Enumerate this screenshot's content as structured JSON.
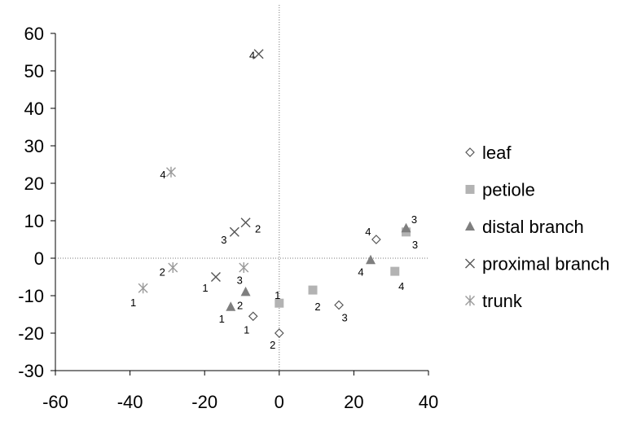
{
  "chart_data": {
    "type": "scatter",
    "title": "",
    "xlabel": "",
    "ylabel": "",
    "xlim": [
      -60,
      40
    ],
    "ylim": [
      -30,
      60
    ],
    "x_ticks": [
      -60,
      -40,
      -20,
      0,
      20,
      40
    ],
    "y_ticks": [
      -30,
      -20,
      -10,
      0,
      10,
      20,
      30,
      40,
      50,
      60
    ],
    "x_tick_labels": [
      "-60",
      "-40",
      "-20",
      "0",
      "20",
      "40"
    ],
    "y_tick_labels": [
      "-30",
      "-20",
      "-10",
      "0",
      "10",
      "20",
      "30",
      "40",
      "50",
      "60"
    ],
    "grid": false,
    "reference_lines": "dotted lines at x=0 and y=0",
    "legend_position": "right",
    "series": [
      {
        "name": "leaf",
        "marker": "diamond-open",
        "color": "#555555",
        "points": [
          {
            "x": -7,
            "y": -15.5,
            "label": "1"
          },
          {
            "x": 0,
            "y": -20,
            "label": "2"
          },
          {
            "x": 16,
            "y": -12.5,
            "label": "3"
          },
          {
            "x": 26,
            "y": 5,
            "label": "4"
          }
        ]
      },
      {
        "name": "petiole",
        "marker": "square",
        "color": "#b3b3b3",
        "points": [
          {
            "x": 0,
            "y": -12,
            "label": "1"
          },
          {
            "x": 9,
            "y": -8.5,
            "label": "2"
          },
          {
            "x": 34,
            "y": 7,
            "label": "3"
          },
          {
            "x": 31,
            "y": -3.5,
            "label": "4"
          }
        ]
      },
      {
        "name": "distal branch",
        "marker": "triangle",
        "color": "#7f7f7f",
        "points": [
          {
            "x": -13,
            "y": -13,
            "label": "1"
          },
          {
            "x": -9,
            "y": -9,
            "label": "2"
          },
          {
            "x": 34,
            "y": 8,
            "label": "3"
          },
          {
            "x": 24.5,
            "y": -0.5,
            "label": "4"
          }
        ]
      },
      {
        "name": "proximal branch",
        "marker": "x",
        "color": "#555555",
        "points": [
          {
            "x": -17,
            "y": -5,
            "label": "1"
          },
          {
            "x": -9,
            "y": 9.5,
            "label": "2"
          },
          {
            "x": -12,
            "y": 7,
            "label": "3"
          },
          {
            "x": -5.5,
            "y": 54.5,
            "label": "4"
          }
        ]
      },
      {
        "name": "trunk",
        "marker": "asterisk",
        "color": "#9a9a9a",
        "points": [
          {
            "x": -36.5,
            "y": -8,
            "label": "1"
          },
          {
            "x": -28.5,
            "y": -2.5,
            "label": "2"
          },
          {
            "x": -9.5,
            "y": -2.5,
            "label": "3"
          },
          {
            "x": -29,
            "y": 23,
            "label": "4"
          }
        ]
      }
    ]
  }
}
